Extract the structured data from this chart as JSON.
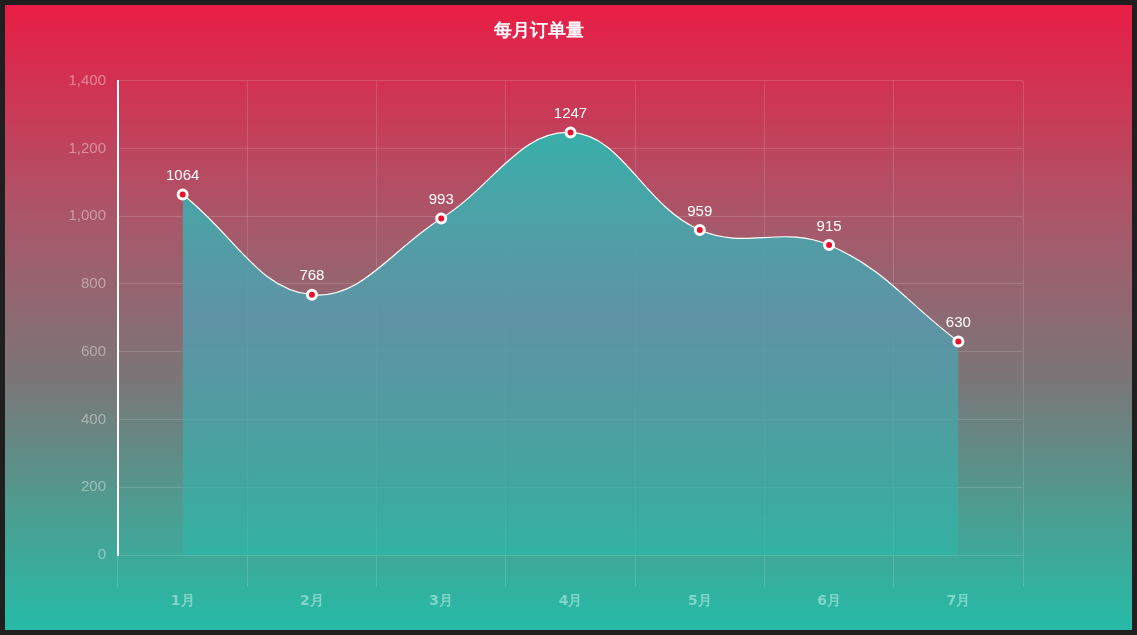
{
  "chart_data": {
    "type": "area",
    "title": "每月订单量",
    "categories": [
      "1月",
      "2月",
      "3月",
      "4月",
      "5月",
      "6月",
      "7月"
    ],
    "series": [
      {
        "color": "#2bb8a9",
        "values": [
          1064,
          768,
          993,
          1247,
          959,
          915,
          630
        ]
      }
    ],
    "ylim": [
      0,
      1400
    ],
    "yticks": [
      0,
      200,
      400,
      600,
      800,
      {
        "value": 1000,
        "label": "1,000"
      },
      {
        "value": 1200,
        "label": "1,200"
      },
      {
        "value": 1400,
        "label": "1,400"
      }
    ],
    "grid": true,
    "legend": false,
    "marker": "circle",
    "line_style": "solid",
    "data_labels": true
  }
}
